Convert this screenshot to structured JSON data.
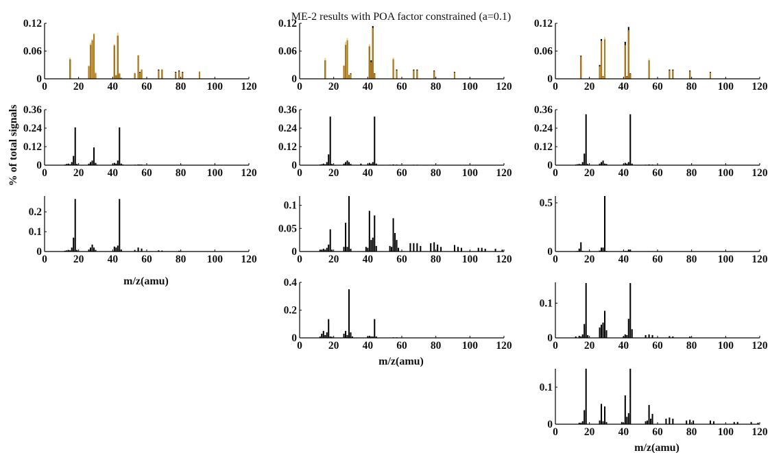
{
  "title": "ME-2 results with POA factor constrained (a=0.1)",
  "ylabel": "% of total signals",
  "xlabel": "m/z(amu)",
  "colors": {
    "measured": "#000000",
    "reference": "#f5cf8a",
    "overlap": "#b07b18",
    "axis": "#000000"
  },
  "chart_data": [
    {
      "type": "bar",
      "panel": "col1-row1",
      "xlim": [
        0,
        120
      ],
      "xticks": [
        0,
        20,
        40,
        60,
        80,
        100,
        120
      ],
      "ylim": [
        0,
        0.12
      ],
      "yticks": [
        "0",
        "0.06",
        "0.12"
      ],
      "yticks_values": [
        0,
        0.06,
        0.12
      ],
      "grid": false,
      "series": [
        {
          "role": "black",
          "x": [
            15,
            26,
            27,
            28,
            29,
            30,
            41,
            42,
            43,
            44,
            45,
            53,
            55,
            56,
            57,
            67,
            69,
            77,
            79,
            81,
            91
          ],
          "values": [
            0.042,
            0.027,
            0.073,
            0.083,
            0.096,
            0.012,
            0.072,
            0.007,
            0.093,
            0.011,
            0.002,
            0.012,
            0.05,
            0.015,
            0.02,
            0.02,
            0.02,
            0.015,
            0.018,
            0.015,
            0.015
          ]
        },
        {
          "role": "reference",
          "x": [
            15,
            26,
            27,
            28,
            29,
            30,
            41,
            42,
            43,
            44,
            53,
            55,
            57,
            69,
            91
          ],
          "values": [
            0.046,
            0.029,
            0.078,
            0.086,
            0.099,
            0.014,
            0.075,
            0.009,
            0.1,
            0.013,
            0.013,
            0.052,
            0.021,
            0.021,
            0.016
          ]
        }
      ]
    },
    {
      "type": "bar",
      "panel": "col2-row1",
      "xlim": [
        0,
        120
      ],
      "xticks": [
        0,
        20,
        40,
        60,
        80,
        100,
        120
      ],
      "ylim": [
        0,
        0.12
      ],
      "yticks": [
        "0",
        "0.06",
        "0.12"
      ],
      "yticks_values": [
        0,
        0.06,
        0.12
      ],
      "grid": false,
      "series": [
        {
          "role": "black",
          "x": [
            15,
            26,
            27,
            28,
            29,
            30,
            41,
            42,
            43,
            44,
            55,
            57,
            67,
            69,
            79,
            91
          ],
          "values": [
            0.04,
            0.028,
            0.073,
            0.083,
            0.008,
            0.012,
            0.07,
            0.04,
            0.114,
            0.012,
            0.042,
            0.02,
            0.02,
            0.02,
            0.018,
            0.015
          ]
        },
        {
          "role": "reference",
          "x": [
            15,
            26,
            27,
            28,
            41,
            43,
            55
          ],
          "values": [
            0.045,
            0.03,
            0.08,
            0.088,
            0.075,
            0.11,
            0.046
          ]
        }
      ]
    },
    {
      "type": "bar",
      "panel": "col3-row1",
      "xlim": [
        0,
        120
      ],
      "xticks": [
        0,
        20,
        40,
        60,
        80,
        100,
        120
      ],
      "ylim": [
        0,
        0.12
      ],
      "yticks": [
        "0",
        "0.06",
        "0.12"
      ],
      "yticks_values": [
        0,
        0.06,
        0.12
      ],
      "grid": false,
      "series": [
        {
          "role": "black",
          "x": [
            15,
            26,
            27,
            28,
            29,
            41,
            42,
            43,
            44,
            55,
            67,
            69,
            79,
            91
          ],
          "values": [
            0.05,
            0.03,
            0.086,
            0.006,
            0.085,
            0.08,
            0.006,
            0.112,
            0.012,
            0.04,
            0.02,
            0.02,
            0.018,
            0.015
          ]
        },
        {
          "role": "reference",
          "x": [
            15,
            27,
            29,
            41,
            43,
            55
          ],
          "values": [
            0.048,
            0.082,
            0.09,
            0.073,
            0.105,
            0.044
          ]
        }
      ]
    },
    {
      "type": "bar",
      "panel": "col1-row2",
      "xlim": [
        0,
        120
      ],
      "xticks": [
        0,
        20,
        40,
        60,
        80,
        100,
        120
      ],
      "ylim": [
        0,
        0.36
      ],
      "yticks": [
        "0",
        "0.12",
        "0.24",
        "0.36"
      ],
      "yticks_values": [
        0,
        0.12,
        0.24,
        0.36
      ],
      "grid": false,
      "series": [
        {
          "role": "black",
          "x": [
            12,
            13,
            14,
            15,
            16,
            17,
            18,
            19,
            26,
            27,
            28,
            29,
            30,
            31,
            40,
            41,
            42,
            43,
            44,
            45,
            46,
            53,
            55,
            56,
            57
          ],
          "values": [
            0.004,
            0.008,
            0.01,
            0.006,
            0.02,
            0.06,
            0.245,
            0.008,
            0.01,
            0.02,
            0.03,
            0.115,
            0.015,
            0.003,
            0.006,
            0.015,
            0.01,
            0.03,
            0.245,
            0.01,
            0.004,
            0.003,
            0.005,
            0.004,
            0.004
          ]
        }
      ]
    },
    {
      "type": "bar",
      "panel": "col2-row2",
      "xlim": [
        0,
        120
      ],
      "xticks": [
        0,
        20,
        40,
        60,
        80,
        100,
        120
      ],
      "ylim": [
        0,
        0.36
      ],
      "yticks": [
        "0",
        "0.12",
        "0.24",
        "0.36"
      ],
      "yticks_values": [
        0,
        0.12,
        0.24,
        0.36
      ],
      "grid": false,
      "series": [
        {
          "role": "black",
          "x": [
            12,
            13,
            14,
            15,
            16,
            17,
            18,
            19,
            26,
            27,
            28,
            29,
            30,
            36,
            40,
            41,
            42,
            43,
            44,
            45,
            53,
            55,
            57,
            67,
            69
          ],
          "values": [
            0.004,
            0.006,
            0.01,
            0.006,
            0.02,
            0.07,
            0.315,
            0.008,
            0.01,
            0.02,
            0.03,
            0.02,
            0.008,
            0.01,
            0.006,
            0.015,
            0.01,
            0.02,
            0.315,
            0.01,
            0.003,
            0.005,
            0.004,
            0.003,
            0.003
          ]
        }
      ]
    },
    {
      "type": "bar",
      "panel": "col3-row2",
      "xlim": [
        0,
        120
      ],
      "xticks": [
        0,
        20,
        40,
        60,
        80,
        100,
        120
      ],
      "ylim": [
        0,
        0.36
      ],
      "yticks": [
        "0",
        "0.12",
        "0.24",
        "0.36"
      ],
      "yticks_values": [
        0,
        0.12,
        0.24,
        0.36
      ],
      "grid": false,
      "series": [
        {
          "role": "black",
          "x": [
            12,
            13,
            14,
            15,
            16,
            17,
            18,
            19,
            26,
            27,
            28,
            29,
            30,
            40,
            41,
            42,
            43,
            44,
            45,
            53,
            55,
            57
          ],
          "values": [
            0.004,
            0.006,
            0.008,
            0.006,
            0.02,
            0.075,
            0.33,
            0.008,
            0.01,
            0.02,
            0.03,
            0.01,
            0.008,
            0.006,
            0.015,
            0.01,
            0.02,
            0.33,
            0.01,
            0.003,
            0.005,
            0.004
          ]
        }
      ]
    },
    {
      "type": "bar",
      "panel": "col1-row3",
      "xlim": [
        0,
        120
      ],
      "xticks": [
        0,
        20,
        40,
        60,
        80,
        100,
        120
      ],
      "ylim": [
        0,
        0.28
      ],
      "yticks": [
        "0",
        "0.1",
        "0.2"
      ],
      "yticks_values": [
        0,
        0.1,
        0.2
      ],
      "grid": false,
      "series": [
        {
          "role": "black",
          "x": [
            12,
            13,
            14,
            15,
            16,
            17,
            18,
            19,
            26,
            27,
            28,
            29,
            30,
            41,
            42,
            43,
            44,
            45,
            53,
            55,
            57,
            67,
            69,
            79
          ],
          "values": [
            0.004,
            0.006,
            0.008,
            0.006,
            0.02,
            0.07,
            0.265,
            0.008,
            0.01,
            0.02,
            0.035,
            0.02,
            0.008,
            0.025,
            0.02,
            0.03,
            0.265,
            0.01,
            0.008,
            0.02,
            0.015,
            0.006,
            0.005,
            0.004
          ]
        }
      ]
    },
    {
      "type": "bar",
      "panel": "col2-row3",
      "xlim": [
        0,
        120
      ],
      "xticks": [
        0,
        20,
        40,
        60,
        80,
        100,
        120
      ],
      "ylim": [
        0,
        0.12
      ],
      "yticks": [
        "0",
        "0.05",
        "0.1"
      ],
      "yticks_values": [
        0,
        0.05,
        0.1
      ],
      "grid": false,
      "series": [
        {
          "role": "black",
          "x": [
            12,
            13,
            14,
            15,
            16,
            17,
            18,
            19,
            26,
            27,
            28,
            29,
            30,
            39,
            40,
            41,
            42,
            43,
            44,
            45,
            53,
            54,
            55,
            56,
            57,
            58,
            65,
            67,
            69,
            71,
            77,
            79,
            81,
            83,
            91,
            93,
            95,
            105,
            107,
            109,
            115,
            119
          ],
          "values": [
            0.004,
            0.004,
            0.006,
            0.004,
            0.008,
            0.015,
            0.048,
            0.004,
            0.01,
            0.062,
            0.01,
            0.12,
            0.006,
            0.01,
            0.008,
            0.088,
            0.025,
            0.03,
            0.078,
            0.012,
            0.012,
            0.01,
            0.072,
            0.04,
            0.025,
            0.008,
            0.018,
            0.018,
            0.018,
            0.012,
            0.018,
            0.02,
            0.015,
            0.01,
            0.014,
            0.01,
            0.008,
            0.008,
            0.008,
            0.006,
            0.006,
            0.004
          ]
        }
      ]
    },
    {
      "type": "bar",
      "panel": "col3-row3",
      "xlim": [
        0,
        120
      ],
      "xticks": [
        0,
        20,
        40,
        60,
        80,
        100,
        120
      ],
      "ylim": [
        0,
        0.57
      ],
      "yticks": [
        "0",
        "0.5"
      ],
      "yticks_values": [
        0,
        0.5
      ],
      "grid": false,
      "series": [
        {
          "role": "black",
          "x": [
            12,
            13,
            14,
            15,
            16,
            17,
            18,
            19,
            26,
            27,
            28,
            29,
            30,
            41,
            42,
            43,
            44,
            55
          ],
          "values": [
            0.004,
            0.006,
            0.03,
            0.095,
            0.006,
            0.004,
            0.004,
            0.004,
            0.01,
            0.04,
            0.04,
            0.57,
            0.006,
            0.006,
            0.006,
            0.02,
            0.02,
            0.004
          ]
        }
      ]
    },
    {
      "type": "bar",
      "panel": "col2-row4",
      "xlim": [
        0,
        120
      ],
      "xticks": [
        0,
        20,
        40,
        60,
        80,
        100,
        120
      ],
      "ylim": [
        0,
        0.4
      ],
      "yticks": [
        "0",
        "0.2",
        "0.4"
      ],
      "yticks_values": [
        0,
        0.2,
        0.4
      ],
      "grid": false,
      "series": [
        {
          "role": "black",
          "x": [
            12,
            13,
            14,
            15,
            16,
            17,
            18,
            19,
            26,
            27,
            28,
            29,
            30,
            31,
            40,
            41,
            42,
            43,
            44,
            45,
            55,
            57
          ],
          "values": [
            0.01,
            0.03,
            0.05,
            0.02,
            0.04,
            0.135,
            0.01,
            0.008,
            0.03,
            0.05,
            0.02,
            0.35,
            0.04,
            0.01,
            0.01,
            0.015,
            0.01,
            0.01,
            0.135,
            0.01,
            0.004,
            0.004
          ]
        }
      ]
    },
    {
      "type": "bar",
      "panel": "col3-row4",
      "xlim": [
        0,
        120
      ],
      "xticks": [
        0,
        20,
        40,
        60,
        80,
        100,
        120
      ],
      "ylim": [
        0,
        0.16
      ],
      "yticks": [
        "0",
        "0.1"
      ],
      "yticks_values": [
        0,
        0.1
      ],
      "grid": false,
      "series": [
        {
          "role": "black",
          "x": [
            12,
            14,
            15,
            16,
            17,
            18,
            19,
            26,
            27,
            28,
            29,
            30,
            40,
            41,
            42,
            43,
            44,
            45,
            53,
            55,
            57,
            67,
            69,
            79
          ],
          "values": [
            0.004,
            0.006,
            0.004,
            0.01,
            0.04,
            0.158,
            0.008,
            0.03,
            0.038,
            0.044,
            0.078,
            0.022,
            0.004,
            0.01,
            0.008,
            0.055,
            0.158,
            0.025,
            0.008,
            0.01,
            0.008,
            0.005,
            0.004,
            0.004
          ]
        }
      ]
    },
    {
      "type": "bar",
      "panel": "col3-row5",
      "xlim": [
        0,
        120
      ],
      "xticks": [
        0,
        20,
        40,
        60,
        80,
        100,
        120
      ],
      "ylim": [
        0,
        0.15
      ],
      "yticks": [
        "0",
        "0.1"
      ],
      "yticks_values": [
        0,
        0.1
      ],
      "grid": false,
      "series": [
        {
          "role": "black",
          "x": [
            14,
            15,
            16,
            17,
            18,
            26,
            27,
            28,
            29,
            30,
            39,
            40,
            41,
            42,
            43,
            44,
            53,
            54,
            55,
            56,
            57,
            65,
            67,
            69,
            77,
            79,
            81,
            91,
            93,
            105,
            107,
            115,
            119
          ],
          "values": [
            0.004,
            0.004,
            0.008,
            0.038,
            0.15,
            0.01,
            0.055,
            0.008,
            0.048,
            0.006,
            0.006,
            0.004,
            0.078,
            0.02,
            0.03,
            0.15,
            0.008,
            0.01,
            0.052,
            0.015,
            0.028,
            0.015,
            0.018,
            0.015,
            0.01,
            0.012,
            0.01,
            0.01,
            0.008,
            0.006,
            0.006,
            0.006,
            0.004
          ]
        }
      ]
    }
  ]
}
